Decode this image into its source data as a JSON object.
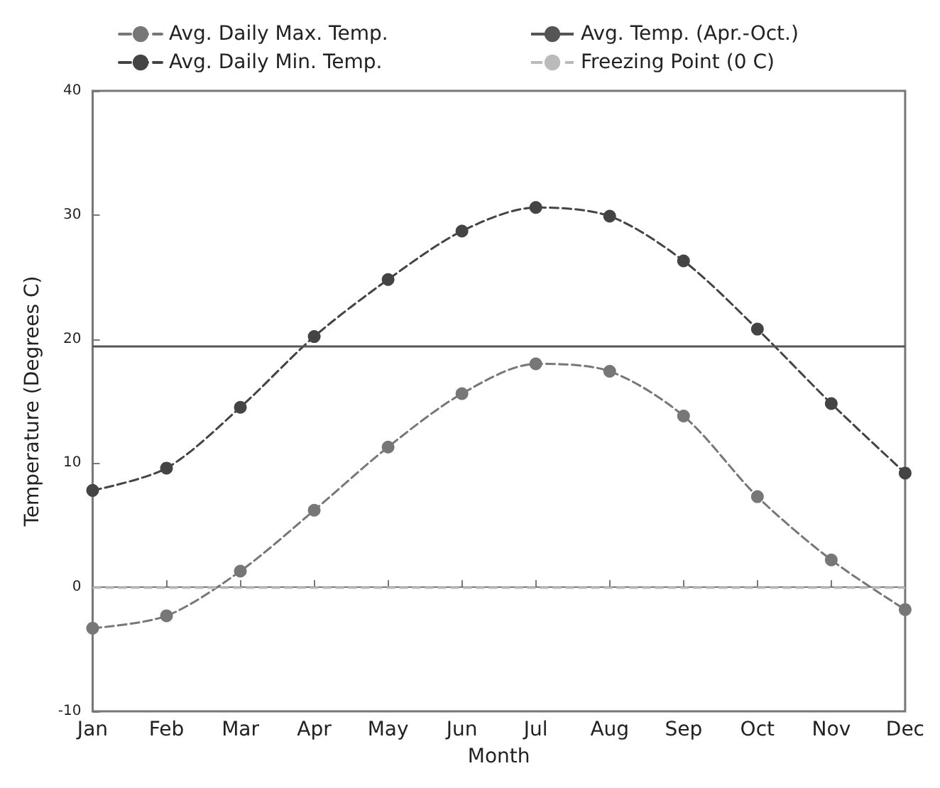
{
  "chart_data": {
    "type": "line",
    "xlabel": "Month",
    "ylabel": "Temperature (Degrees C)",
    "categories": [
      "Jan",
      "Feb",
      "Mar",
      "Apr",
      "May",
      "Jun",
      "Jul",
      "Aug",
      "Sep",
      "Oct",
      "Nov",
      "Dec"
    ],
    "series": [
      {
        "name": "Avg. Daily Max. Temp.",
        "color": "#777777",
        "values": [
          -3.3,
          -2.3,
          1.3,
          6.2,
          11.3,
          15.6,
          18.0,
          17.4,
          13.8,
          7.3,
          2.2,
          -1.8
        ]
      },
      {
        "name": "Avg. Daily Min. Temp.",
        "color": "#444444",
        "values": [
          7.8,
          9.6,
          14.5,
          20.2,
          24.8,
          28.7,
          30.6,
          29.9,
          26.3,
          20.8,
          14.8,
          9.2
        ]
      }
    ],
    "ylim": [
      -10,
      40
    ],
    "yticks": [
      -10,
      0,
      10,
      20,
      30,
      40
    ],
    "ref_lines": [
      {
        "axis": "y",
        "value": 19.4,
        "label": "Avg. Temp. (Apr.-Oct.)",
        "color": "#555555",
        "line_style": "solid"
      },
      {
        "axis": "y",
        "value": 0,
        "label": "Freezing Point (0 C)",
        "color": "#bbbbbb",
        "line_style": "dashed"
      }
    ],
    "marker": "circle",
    "line_style": "dashed",
    "legend": "top",
    "grid": false
  }
}
